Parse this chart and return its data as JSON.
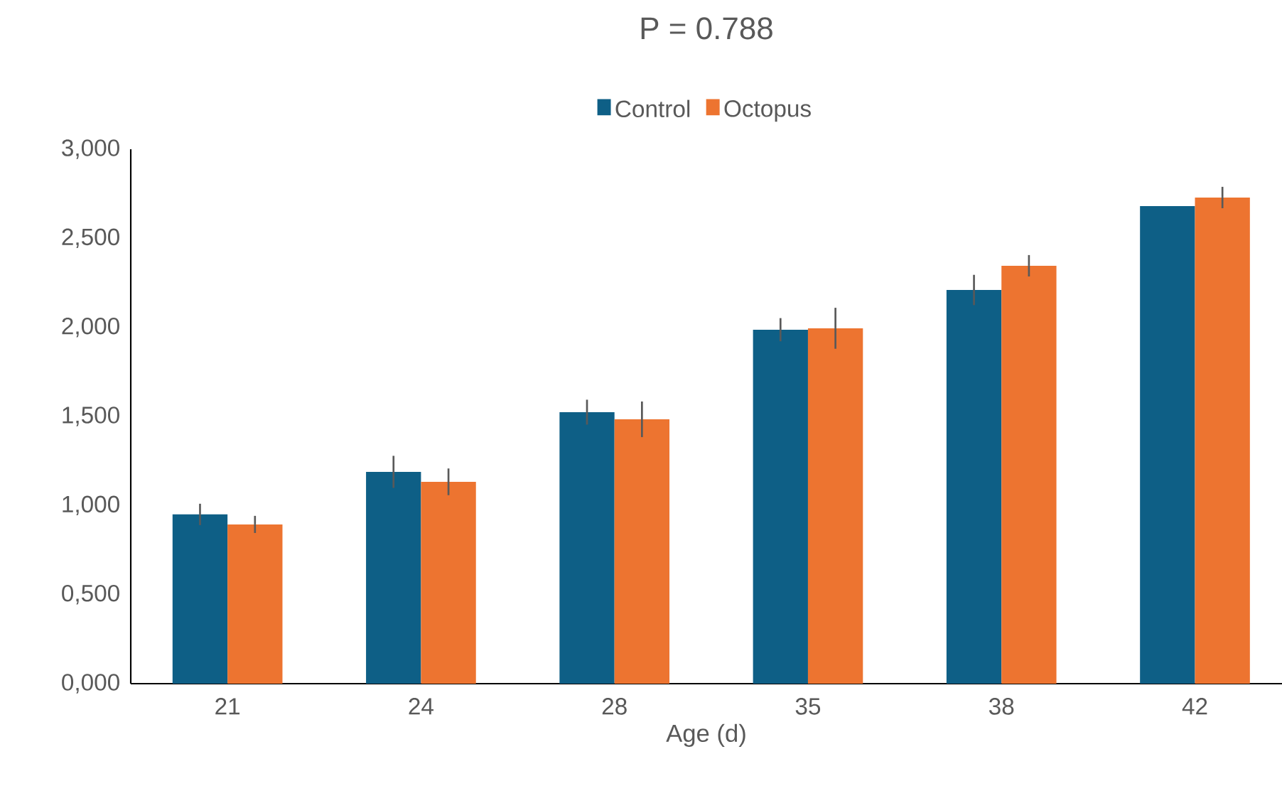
{
  "chart_data": {
    "type": "bar",
    "title": "P = 0.788",
    "xlabel": "Age (d)",
    "categories": [
      "21",
      "24",
      "28",
      "35",
      "38",
      "42"
    ],
    "series": [
      {
        "name": "Control",
        "color": "#0e5f86",
        "values": [
          0.95,
          1.189,
          1.524,
          1.987,
          2.21,
          2.681
        ],
        "errors": [
          0.06,
          0.09,
          0.07,
          0.065,
          0.085,
          null
        ]
      },
      {
        "name": "Octopus",
        "color": "#ed7430",
        "values": [
          0.894,
          1.133,
          1.484,
          1.995,
          2.346,
          2.729
        ],
        "errors": [
          0.048,
          0.075,
          0.1,
          0.115,
          0.06,
          0.06
        ]
      }
    ],
    "ylim": [
      0,
      3
    ],
    "yticks": [
      {
        "value": 0,
        "label": "0,000"
      },
      {
        "value": 0.5,
        "label": "0,500"
      },
      {
        "value": 1,
        "label": "1,000"
      },
      {
        "value": 1.5,
        "label": "1,500"
      },
      {
        "value": 2,
        "label": "2,000"
      },
      {
        "value": 2.5,
        "label": "2,500"
      },
      {
        "value": 3,
        "label": "3,000"
      }
    ],
    "legend": "top",
    "grid": false
  }
}
